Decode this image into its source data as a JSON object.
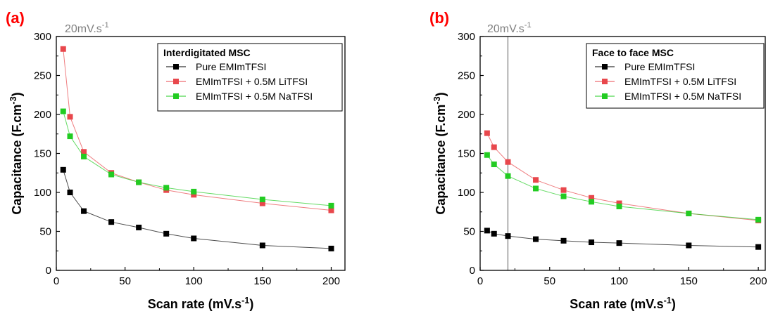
{
  "colors": {
    "black_series": "#000000",
    "red_series": "#e8474c",
    "green_series": "#22cc22",
    "panel_label": "#ff0000",
    "annotation": "#808080"
  },
  "chart_data": [
    {
      "type": "line",
      "panel_label": "(a)",
      "annotation": "20mV.s",
      "annotation_sup": "-1",
      "legend_title": "Interdigitated MSC",
      "legend_placement": "top-right",
      "xlabel": "Scan rate (mV.s",
      "xlabel_sup": "-1",
      "ylabel": "Capacitance (F.cm",
      "ylabel_sup": "-3",
      "xlim": [
        0,
        210
      ],
      "ylim": [
        0,
        300
      ],
      "xticks": [
        0,
        50,
        100,
        150,
        200
      ],
      "yticks": [
        0,
        50,
        100,
        150,
        200,
        250,
        300
      ],
      "grid": false,
      "series": [
        {
          "name": "Pure EMImTFSI",
          "color": "#000000",
          "x": [
            5,
            10,
            20,
            40,
            60,
            80,
            100,
            150,
            200
          ],
          "y": [
            129,
            100,
            76,
            62,
            55,
            47,
            41,
            32,
            28
          ]
        },
        {
          "name": "EMImTFSI + 0.5M LiTFSI",
          "color": "#e8474c",
          "x": [
            5,
            10,
            20,
            40,
            60,
            80,
            100,
            150,
            200
          ],
          "y": [
            284,
            197,
            152,
            125,
            113,
            103,
            97,
            86,
            77
          ]
        },
        {
          "name": "EMImTFSI + 0.5M NaTFSI",
          "color": "#22cc22",
          "x": [
            5,
            10,
            20,
            40,
            60,
            80,
            100,
            150,
            200
          ],
          "y": [
            204,
            172,
            146,
            123,
            113,
            106,
            101,
            91,
            83
          ]
        }
      ]
    },
    {
      "type": "line",
      "panel_label": "(b)",
      "annotation": "20mV.s",
      "annotation_sup": "-1",
      "vline_x": 20,
      "legend_title": "Face to face MSC",
      "legend_placement": "top-right",
      "xlabel": "Scan rate (mV.s",
      "xlabel_sup": "-1",
      "ylabel": "Capacitance (F.cm",
      "ylabel_sup": "-3",
      "xlim": [
        0,
        205
      ],
      "ylim": [
        0,
        300
      ],
      "xticks": [
        0,
        50,
        100,
        150,
        200
      ],
      "yticks": [
        0,
        50,
        100,
        150,
        200,
        250,
        300
      ],
      "grid": false,
      "series": [
        {
          "name": "Pure EMImTFSI",
          "color": "#000000",
          "x": [
            5,
            10,
            20,
            40,
            60,
            80,
            100,
            150,
            200
          ],
          "y": [
            51,
            47,
            44,
            40,
            38,
            36,
            35,
            32,
            30
          ]
        },
        {
          "name": "EMImTFSI + 0.5M LiTFSI",
          "color": "#e8474c",
          "x": [
            5,
            10,
            20,
            40,
            60,
            80,
            100,
            150,
            200
          ],
          "y": [
            176,
            158,
            139,
            116,
            103,
            93,
            86,
            73,
            64
          ]
        },
        {
          "name": "EMImTFSI + 0.5M NaTFSI",
          "color": "#22cc22",
          "x": [
            5,
            10,
            20,
            40,
            60,
            80,
            100,
            150,
            200
          ],
          "y": [
            148,
            136,
            121,
            105,
            95,
            88,
            82,
            73,
            65
          ]
        }
      ]
    }
  ]
}
